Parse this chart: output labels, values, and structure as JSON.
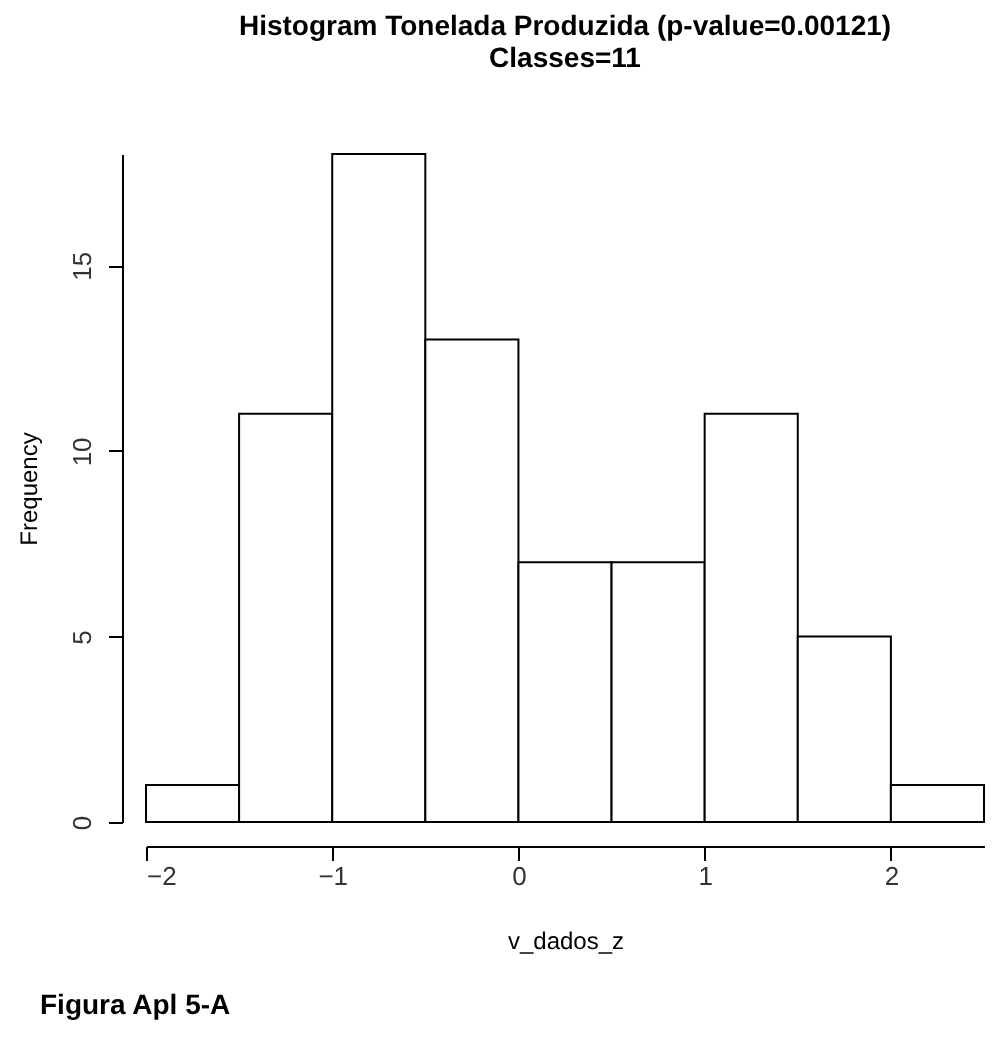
{
  "chart_data": {
    "type": "histogram",
    "title": "Histogram Tonelada Produzida (p-value=0.00121)\nClasses=11",
    "xlabel": "v_dados_z",
    "ylabel": "Frequency",
    "bins": [
      -2,
      -1.5,
      -1,
      -0.5,
      0,
      0.5,
      1,
      1.5,
      2,
      2.5
    ],
    "values": [
      1,
      11,
      18,
      13,
      7,
      7,
      11,
      5,
      1
    ],
    "color": "#ffffff",
    "xlim": [
      -2,
      2.5
    ],
    "xticks": [
      -2,
      -1,
      0,
      1,
      2
    ],
    "ylim": [
      0,
      18
    ],
    "yticks": [
      0,
      5,
      10,
      15
    ],
    "grid": false,
    "annotations": [
      "Figura Apl 5-A"
    ]
  }
}
